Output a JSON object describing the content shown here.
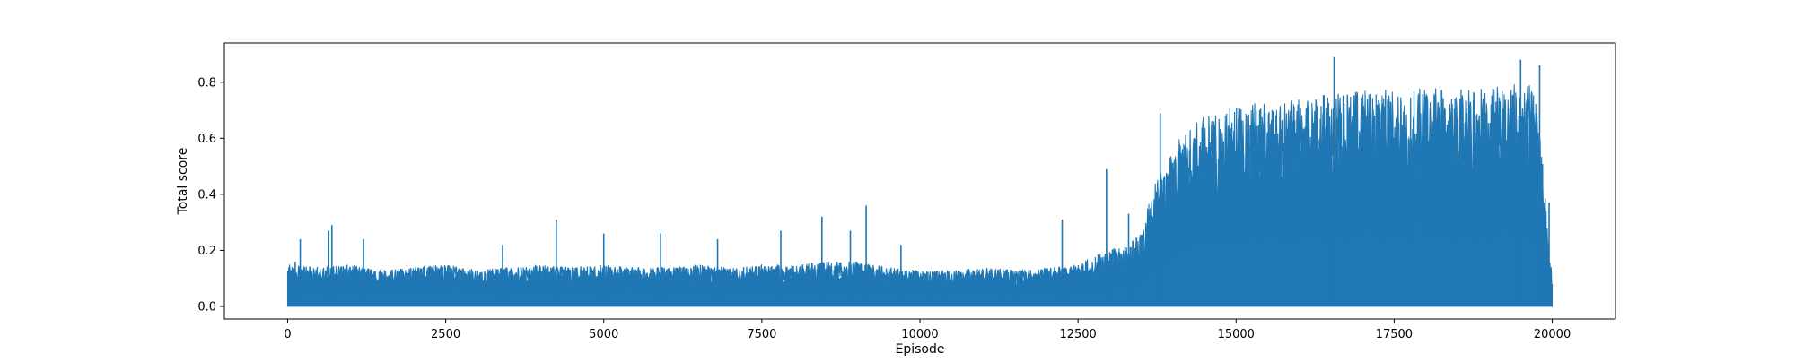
{
  "chart_data": {
    "type": "line",
    "title": "",
    "xlabel": "Episode",
    "ylabel": "Total score",
    "xlim": [
      -1000,
      21000
    ],
    "ylim": [
      -0.045,
      0.94
    ],
    "x_ticks": [
      0,
      2500,
      5000,
      7500,
      10000,
      12500,
      15000,
      17500,
      20000
    ],
    "x_tick_labels": [
      "0",
      "2500",
      "5000",
      "7500",
      "10000",
      "12500",
      "15000",
      "17500",
      "20000"
    ],
    "y_ticks": [
      0.0,
      0.2,
      0.4,
      0.6,
      0.8
    ],
    "y_tick_labels": [
      "0.0",
      "0.2",
      "0.4",
      "0.6",
      "0.8"
    ],
    "grid": false,
    "legend": "none",
    "series_color": "#1f77b4",
    "series": [
      {
        "x": [
          0,
          500,
          1000,
          1500,
          2000,
          2500,
          3000,
          3500,
          4000,
          4500,
          5000,
          5500,
          6000,
          6500,
          7000,
          7500,
          8000,
          8500,
          9000,
          9500,
          10000,
          10500,
          11000,
          11500,
          12000,
          12500,
          12750,
          13000,
          13250,
          13500,
          13750,
          14000,
          14250,
          14500,
          14750,
          15000,
          15500,
          16000,
          16500,
          17000,
          17500,
          18000,
          18500,
          19000,
          19500,
          19750,
          19900,
          20000
        ],
        "y_max": [
          0.15,
          0.14,
          0.15,
          0.13,
          0.14,
          0.15,
          0.13,
          0.14,
          0.15,
          0.14,
          0.15,
          0.14,
          0.14,
          0.15,
          0.14,
          0.15,
          0.15,
          0.16,
          0.16,
          0.14,
          0.13,
          0.13,
          0.14,
          0.13,
          0.14,
          0.15,
          0.18,
          0.2,
          0.22,
          0.26,
          0.48,
          0.57,
          0.64,
          0.68,
          0.7,
          0.72,
          0.73,
          0.74,
          0.76,
          0.78,
          0.77,
          0.78,
          0.78,
          0.78,
          0.8,
          0.8,
          0.36,
          0.1
        ],
        "y_min": [
          0.0,
          0.0,
          0.0,
          0.0,
          0.0,
          0.0,
          0.0,
          0.0,
          0.0,
          0.0,
          0.0,
          0.0,
          0.0,
          0.0,
          0.0,
          0.0,
          0.0,
          0.0,
          0.0,
          0.0,
          0.0,
          0.0,
          0.0,
          0.0,
          0.0,
          0.0,
          0.0,
          0.0,
          0.0,
          0.0,
          0.0,
          0.0,
          0.0,
          0.0,
          0.0,
          0.0,
          0.0,
          0.0,
          0.0,
          0.0,
          0.0,
          0.0,
          0.0,
          0.0,
          0.0,
          0.0,
          0.0,
          0.0
        ]
      }
    ],
    "peaks": [
      {
        "x": 120,
        "y": 0.16
      },
      {
        "x": 200,
        "y": 0.24
      },
      {
        "x": 650,
        "y": 0.27
      },
      {
        "x": 700,
        "y": 0.29
      },
      {
        "x": 1200,
        "y": 0.24
      },
      {
        "x": 3400,
        "y": 0.22
      },
      {
        "x": 4250,
        "y": 0.31
      },
      {
        "x": 5000,
        "y": 0.26
      },
      {
        "x": 5900,
        "y": 0.26
      },
      {
        "x": 6800,
        "y": 0.24
      },
      {
        "x": 7800,
        "y": 0.27
      },
      {
        "x": 8450,
        "y": 0.32
      },
      {
        "x": 8900,
        "y": 0.27
      },
      {
        "x": 9150,
        "y": 0.36
      },
      {
        "x": 9700,
        "y": 0.22
      },
      {
        "x": 12250,
        "y": 0.31
      },
      {
        "x": 12950,
        "y": 0.49
      },
      {
        "x": 13300,
        "y": 0.33
      },
      {
        "x": 13800,
        "y": 0.69
      },
      {
        "x": 16550,
        "y": 0.89
      },
      {
        "x": 19500,
        "y": 0.88
      },
      {
        "x": 19800,
        "y": 0.86
      },
      {
        "x": 19950,
        "y": 0.37
      }
    ]
  }
}
